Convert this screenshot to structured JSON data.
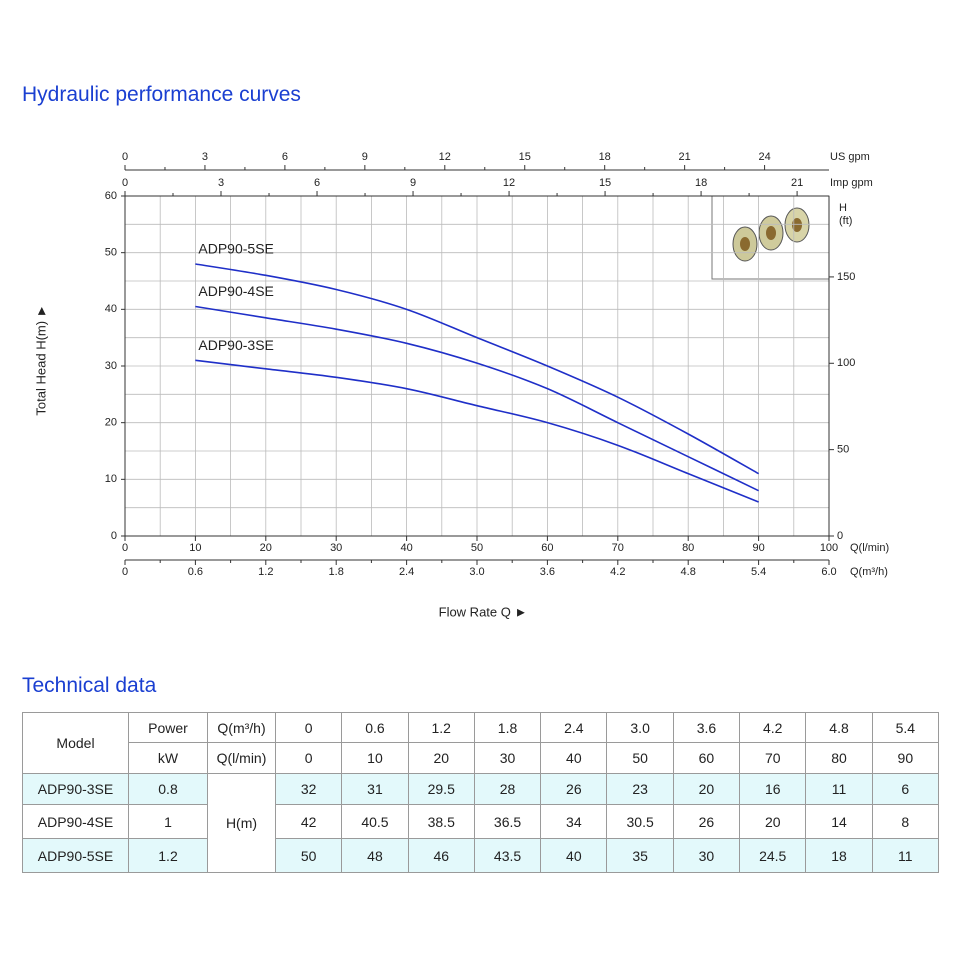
{
  "title": "Hydraulic performance curves",
  "chart_data": {
    "type": "line",
    "x": [
      10,
      20,
      30,
      40,
      50,
      60,
      70,
      80,
      90
    ],
    "series": [
      {
        "name": "ADP90-3SE",
        "color": "#1f2fc8",
        "values": [
          31,
          29.5,
          28,
          26,
          23,
          20,
          16,
          11,
          6
        ]
      },
      {
        "name": "ADP90-4SE",
        "color": "#1f2fc8",
        "values": [
          40.5,
          38.5,
          36.5,
          34,
          30.5,
          26,
          20,
          14,
          8
        ]
      },
      {
        "name": "ADP90-5SE",
        "color": "#1f2fc8",
        "values": [
          48,
          46,
          43.5,
          40,
          35,
          30,
          24.5,
          18,
          11
        ]
      }
    ],
    "xlim": [
      0,
      100
    ],
    "xticks": [
      0,
      10,
      20,
      30,
      40,
      50,
      60,
      70,
      80,
      90,
      100
    ],
    "x_unit": "Q(l/min)",
    "xlabel": "Flow Rate Q ►",
    "ylim": [
      0,
      60
    ],
    "yticks": [
      0,
      10,
      20,
      30,
      40,
      50,
      60
    ],
    "ylabel": "Total Head H(m) ►",
    "y2lim": [
      0,
      196.85
    ],
    "y2ticks": [
      0,
      50,
      100,
      150
    ],
    "y2label": [
      "H",
      "(ft)"
    ],
    "secondary_x_axes": [
      {
        "position": "bottom",
        "label": "Q(m³/h)",
        "lim": [
          0,
          6
        ],
        "ticks": [
          0,
          0.6,
          1.2,
          1.8,
          2.4,
          {
            "value": 3,
            "label": "3.0"
          },
          3.6,
          4.2,
          4.8,
          5.4,
          {
            "value": 6,
            "label": "6.0"
          }
        ]
      },
      {
        "position": "top",
        "label": "Imp gpm",
        "lim": [
          0,
          21.997
        ],
        "ticks": [
          0,
          3,
          6,
          9,
          12,
          15,
          18,
          21
        ]
      },
      {
        "position": "top",
        "label": "US gpm",
        "lim": [
          0,
          26.417
        ],
        "ticks": [
          0,
          3,
          6,
          9,
          12,
          15,
          18,
          21,
          24
        ]
      }
    ],
    "grid": true
  },
  "table_title": "Technical data",
  "table": {
    "header": [
      "Model",
      "Power",
      "Q(m³/h)"
    ],
    "flow_m3h": [
      "0",
      "0.6",
      "1.2",
      "1.8",
      "2.4",
      "3.0",
      "3.6",
      "4.2",
      "4.8",
      "5.4"
    ],
    "units": [
      "kW",
      "Q(l/min)"
    ],
    "flow_lmin": [
      "0",
      "10",
      "20",
      "30",
      "40",
      "50",
      "60",
      "70",
      "80",
      "90"
    ],
    "head_label": "H(m)",
    "rows": [
      {
        "model": "ADP90-3SE",
        "power": "0.8",
        "head": [
          "32",
          "31",
          "29.5",
          "28",
          "26",
          "23",
          "20",
          "16",
          "11",
          "6"
        ]
      },
      {
        "model": "ADP90-4SE",
        "power": "1",
        "head": [
          "42",
          "40.5",
          "38.5",
          "36.5",
          "34",
          "30.5",
          "26",
          "20",
          "14",
          "8"
        ]
      },
      {
        "model": "ADP90-5SE",
        "power": "1.2",
        "head": [
          "50",
          "48",
          "46",
          "43.5",
          "40",
          "35",
          "30",
          "24.5",
          "18",
          "11"
        ]
      }
    ]
  }
}
